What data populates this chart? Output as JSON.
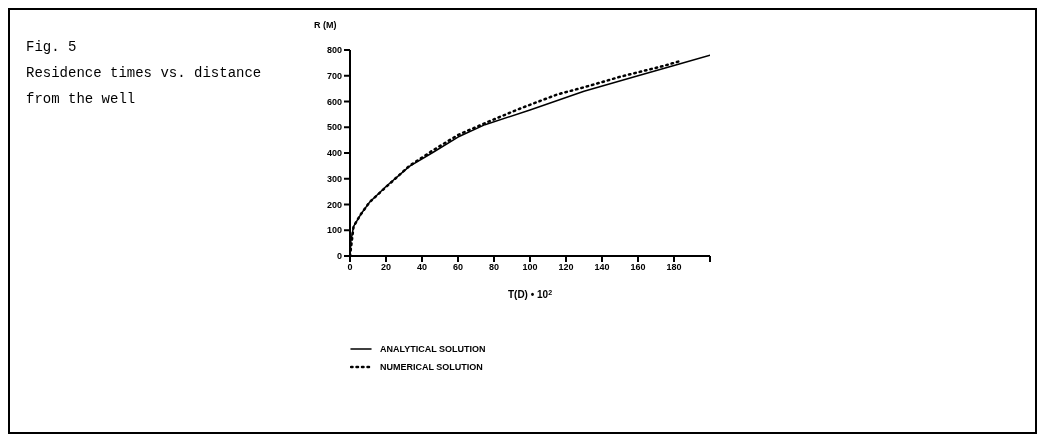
{
  "chart_data": {
    "type": "line",
    "title": "Fig. 5",
    "subtitle": "Residence times vs. distance from the well",
    "xlabel": "T(D) • 10$^{2}$",
    "ylabel": "R (M)",
    "xlim": [
      0,
      200
    ],
    "xticks": [
      0,
      20,
      40,
      60,
      80,
      100,
      120,
      140,
      160,
      180,
      {
        "value": 200,
        "label": null
      }
    ],
    "ylim": [
      0,
      800
    ],
    "yticks": [
      0,
      100,
      200,
      300,
      400,
      500,
      600,
      700,
      800
    ],
    "grid": false,
    "legend": "bottom",
    "marker": "none",
    "series": [
      {
        "name": "ANALYTICAL SOLUTION",
        "color": "#000000",
        "line_style": "solid",
        "x": [
          0,
          0.5,
          2,
          6,
          11,
          20,
          33,
          46,
          60,
          75,
          100,
          130,
          160,
          180,
          200
        ],
        "values": [
          0,
          60,
          115,
          162,
          210,
          270,
          348,
          402,
          462,
          510,
          567,
          640,
          700,
          740,
          780
        ]
      },
      {
        "name": "NUMERICAL SOLUTION",
        "color": "#000000",
        "line_style": "dotted",
        "x": [
          0,
          2,
          6,
          11,
          20,
          33,
          46,
          60,
          77,
          95,
          115,
          133,
          150,
          173,
          183
        ],
        "values": [
          0,
          115,
          162,
          210,
          268,
          350,
          410,
          470,
          522,
          574,
          627,
          661,
          696,
          736,
          756
        ]
      }
    ]
  }
}
